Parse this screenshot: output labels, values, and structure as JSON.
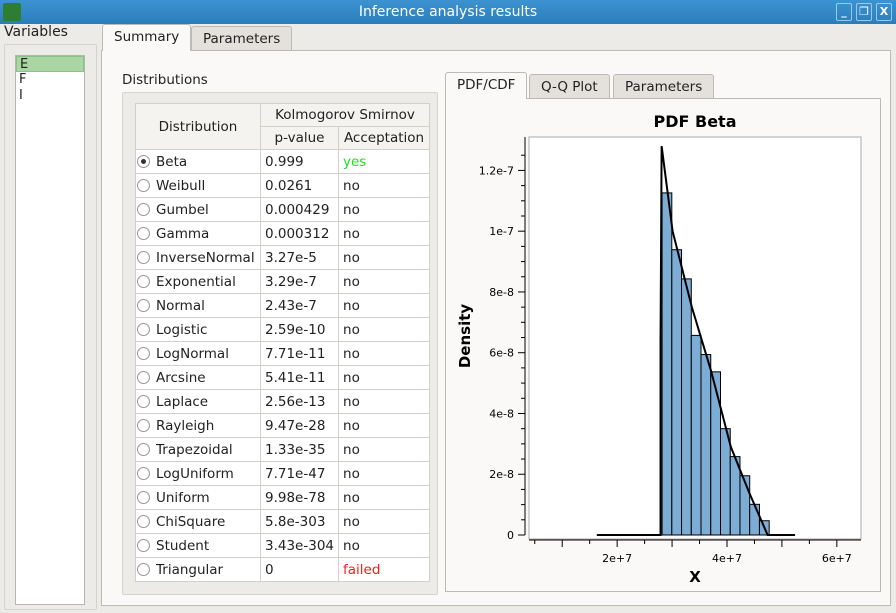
{
  "window": {
    "title": "Inference analysis results",
    "minimize": "_",
    "restore": "❐",
    "close": "X"
  },
  "variables": {
    "label": "Variables",
    "items": [
      "E",
      "F",
      "I"
    ],
    "selected": "E"
  },
  "main_tabs": [
    "Summary",
    "Parameters"
  ],
  "summary": {
    "group_label": "Distributions",
    "table": {
      "headers": {
        "distribution": "Distribution",
        "test": "Kolmogorov Smirnov",
        "pvalue": "p-value",
        "acceptation": "Acceptation"
      },
      "rows": [
        {
          "name": "Beta",
          "p": "0.999",
          "acc": "yes",
          "selected": true
        },
        {
          "name": "Weibull",
          "p": "0.0261",
          "acc": "no"
        },
        {
          "name": "Gumbel",
          "p": "0.000429",
          "acc": "no"
        },
        {
          "name": "Gamma",
          "p": "0.000312",
          "acc": "no"
        },
        {
          "name": "InverseNormal",
          "p": "3.27e-5",
          "acc": "no"
        },
        {
          "name": "Exponential",
          "p": "3.29e-7",
          "acc": "no"
        },
        {
          "name": "Normal",
          "p": "2.43e-7",
          "acc": "no"
        },
        {
          "name": "Logistic",
          "p": "2.59e-10",
          "acc": "no"
        },
        {
          "name": "LogNormal",
          "p": "7.71e-11",
          "acc": "no"
        },
        {
          "name": "Arcsine",
          "p": "5.41e-11",
          "acc": "no"
        },
        {
          "name": "Laplace",
          "p": "2.56e-13",
          "acc": "no"
        },
        {
          "name": "Rayleigh",
          "p": "9.47e-28",
          "acc": "no"
        },
        {
          "name": "Trapezoidal",
          "p": "1.33e-35",
          "acc": "no"
        },
        {
          "name": "LogUniform",
          "p": "7.71e-47",
          "acc": "no"
        },
        {
          "name": "Uniform",
          "p": "9.98e-78",
          "acc": "no"
        },
        {
          "name": "ChiSquare",
          "p": "5.8e-303",
          "acc": "no"
        },
        {
          "name": "Student",
          "p": "3.43e-304",
          "acc": "no"
        },
        {
          "name": "Triangular",
          "p": "0",
          "acc": "failed"
        }
      ]
    },
    "colors": {
      "yes": "#22dd22",
      "failed": "#ff1a1a",
      "no": "#222222"
    }
  },
  "plot_tabs": [
    "PDF/CDF",
    "Q-Q Plot",
    "Parameters"
  ],
  "chart_data": {
    "type": "bar",
    "title": "PDF Beta",
    "xlabel": "X",
    "ylabel": "Density",
    "xlim": [
      3950000,
      64400000
    ],
    "ylim": [
      0,
      1.31e-07
    ],
    "xticks": [
      {
        "v": 20000000,
        "label": "2e+7"
      },
      {
        "v": 40000000,
        "label": "4e+7"
      },
      {
        "v": 60000000,
        "label": "6e+7"
      }
    ],
    "yticks": [
      {
        "v": 0,
        "label": "0"
      },
      {
        "v": 2e-08,
        "label": "2e-8"
      },
      {
        "v": 4e-08,
        "label": "4e-8"
      },
      {
        "v": 6e-08,
        "label": "6e-8"
      },
      {
        "v": 8e-08,
        "label": "8e-8"
      },
      {
        "v": 1e-07,
        "label": "1e-7"
      },
      {
        "v": 1.2e-07,
        "label": "1.2e-7"
      }
    ],
    "histogram": {
      "start": 28180000,
      "bin_width": 1773000,
      "values": [
        1.126e-07,
        9.39e-08,
        8.43e-08,
        6.57e-08,
        5.94e-08,
        5.37e-08,
        3.5e-08,
        2.58e-08,
        1.95e-08,
        1.01e-08,
        4.7e-09
      ],
      "color": "#7dacd4"
    },
    "pdf_curve": [
      [
        16300000,
        0
      ],
      [
        27900000,
        0
      ],
      [
        27900000,
        6.4e-08
      ],
      [
        28100000,
        1.28e-07
      ],
      [
        30100000,
        1e-07
      ],
      [
        33600000,
        7.5e-08
      ],
      [
        37100000,
        5.4e-08
      ],
      [
        40700000,
        2.9e-08
      ],
      [
        44100000,
        1.37e-08
      ],
      [
        47400000,
        0
      ],
      [
        52400000,
        0
      ]
    ],
    "grid": false
  }
}
